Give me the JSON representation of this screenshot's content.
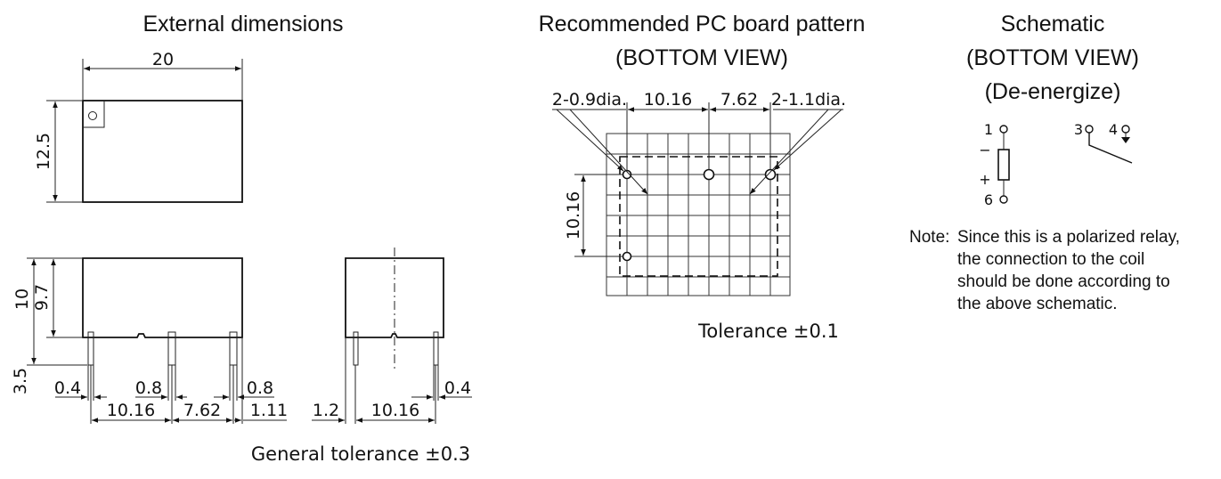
{
  "external": {
    "title": "External dimensions",
    "dims": {
      "width": "20",
      "depth": "12.5",
      "height": "10",
      "body_height": "9.7",
      "pin_length": "3.5",
      "pin_width_left": "0.4",
      "pin_width_mid": "0.8",
      "pin_width_right": "0.8",
      "pitch_1": "10.16",
      "pitch_2": "7.62",
      "offset_right": "1.11",
      "side_offset": "1.2",
      "side_pitch": "10.16",
      "side_pin_width": "0.4"
    },
    "tolerance": "General tolerance ±0.3"
  },
  "pcb": {
    "title_line1": "Recommended PC board pattern",
    "title_line2": "(BOTTOM VIEW)",
    "hole_small": "2-0.9dia.",
    "hole_large": "2-1.1dia.",
    "pitch_1": "10.16",
    "pitch_2": "7.62",
    "pitch_v": "10.16",
    "tolerance": "Tolerance ±0.1"
  },
  "schematic": {
    "title_line1": "Schematic",
    "title_line2": "(BOTTOM VIEW)",
    "title_line3": "(De-energize)",
    "pin1": "1",
    "pin3": "3",
    "pin4": "4",
    "pin6": "6",
    "minus": "−",
    "plus": "+",
    "note_label": "Note:",
    "note_lines": [
      "Since this is a polarized relay,",
      "the connection to the coil",
      "should be done according to",
      "the above schematic."
    ]
  }
}
